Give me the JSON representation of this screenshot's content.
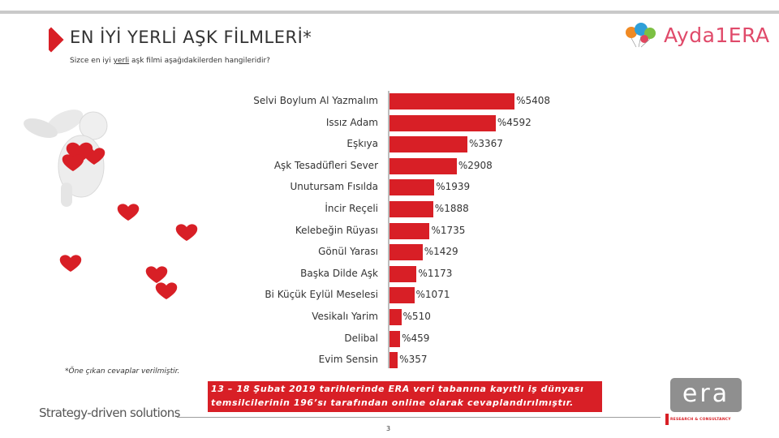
{
  "header": {
    "title": "EN İYİ YERLİ AŞK FİLMLERİ*",
    "subtitle_pre": "Sizce en iyi ",
    "subtitle_underlined": "yerli",
    "subtitle_post": " aşk filmi aşağıdakilerden hangileridir?",
    "logo_text": "Ayda1ERA"
  },
  "chart_data": {
    "type": "bar",
    "orientation": "horizontal",
    "categories": [
      "Selvi Boylum Al Yazmalım",
      "Issız Adam",
      "Eşkıya",
      "Aşk Tesadüfleri Sever",
      "Unutursam Fısılda",
      "İncir Reçeli",
      "Kelebeğin Rüyası",
      "Gönül Yarası",
      "Başka Dilde Aşk",
      "Bi Küçük Eylül Meselesi",
      "Vesikalı Yarim",
      "Delibal",
      "Evim Sensin"
    ],
    "values": [
      54.08,
      45.92,
      33.67,
      29.08,
      19.39,
      18.88,
      17.35,
      14.29,
      11.73,
      10.71,
      5.1,
      4.59,
      3.57
    ],
    "value_labels": [
      "%5408",
      "%4592",
      "%3367",
      "%2908",
      "%1939",
      "%1888",
      "%1735",
      "%1429",
      "%1173",
      "%1071",
      "%510",
      "%459",
      "%357"
    ],
    "bar_color": "#d81f26"
  },
  "footnote": "*Öne çıkan cevaplar verilmiştir.",
  "banner": {
    "line1": "13 – 18 Şubat 2019 tarihlerinde ERA veri tabanına kayıtlı iş dünyası",
    "line2": "temsilcilerinin 196’sı tarafından online olarak cevaplandırılmıştır."
  },
  "footer": {
    "slogan": "Strategy-driven solutions",
    "page_number": "3",
    "era_logo": "era",
    "era_tagline": "RESEARCH & CONSULTANCY"
  }
}
